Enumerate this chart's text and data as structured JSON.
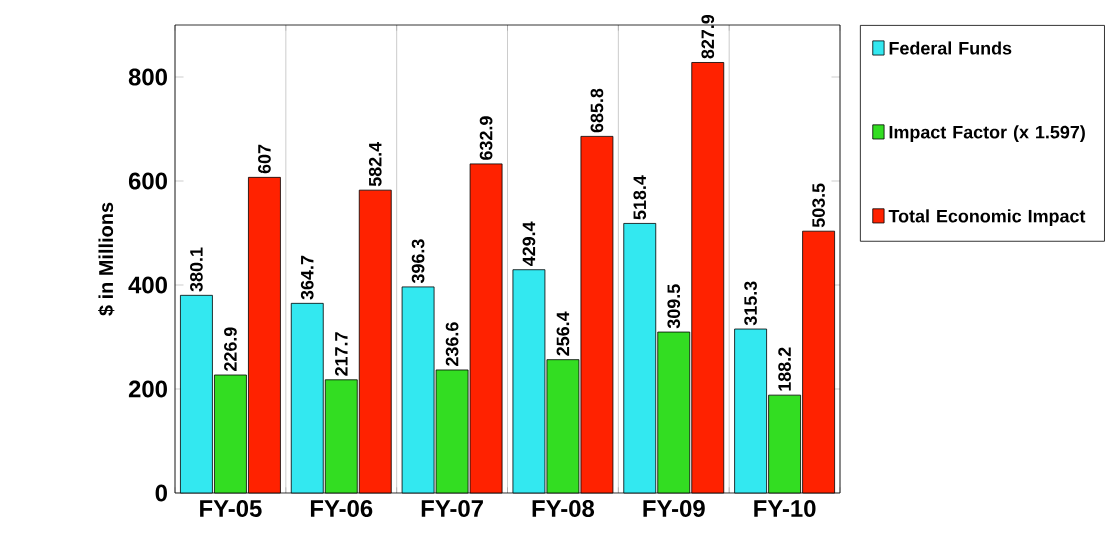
{
  "chart_data": {
    "type": "bar",
    "ylabel": "$ in Millions",
    "categories": [
      "FY-05",
      "FY-06",
      "FY-07",
      "FY-08",
      "FY-09",
      "FY-10"
    ],
    "series": [
      {
        "name": "Federal Funds",
        "color": "#33e8f0",
        "values": [
          380.1,
          364.7,
          396.3,
          429.4,
          518.4,
          315.3
        ]
      },
      {
        "name": "Impact Factor (x 1.597)",
        "color": "#33dd22",
        "values": [
          226.9,
          217.7,
          236.6,
          256.4,
          309.5,
          188.2
        ]
      },
      {
        "name": "Total Economic Impact",
        "color": "#ff2200",
        "values": [
          607,
          582.4,
          632.9,
          685.8,
          827.9,
          503.5
        ]
      }
    ],
    "ylim": [
      0,
      900
    ],
    "yticks": [
      0,
      200,
      400,
      600,
      800
    ],
    "grid": "x",
    "legend": "right",
    "data_labels": true
  }
}
